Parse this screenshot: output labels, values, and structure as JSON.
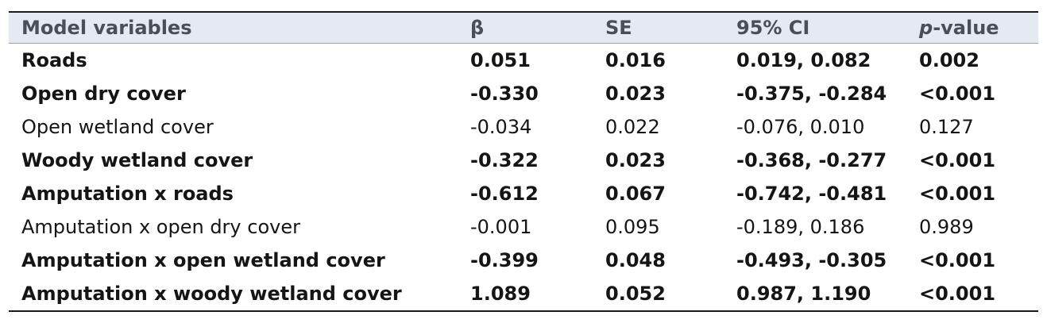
{
  "table": {
    "headers": {
      "variable": "Model variables",
      "beta": "β",
      "se": "SE",
      "ci": "95% CI",
      "p_prefix": "p",
      "p_suffix": "-value"
    },
    "rows": [
      {
        "variable": "Roads",
        "beta": "0.051",
        "se": "0.016",
        "ci": "0.019, 0.082",
        "p": "0.002",
        "bold": true
      },
      {
        "variable": "Open dry cover",
        "beta": "-0.330",
        "se": "0.023",
        "ci": "-0.375, -0.284",
        "p": "<0.001",
        "bold": true
      },
      {
        "variable": "Open wetland cover",
        "beta": "-0.034",
        "se": "0.022",
        "ci": "-0.076, 0.010",
        "p": "0.127",
        "bold": false
      },
      {
        "variable": "Woody wetland cover",
        "beta": "-0.322",
        "se": "0.023",
        "ci": "-0.368, -0.277",
        "p": "<0.001",
        "bold": true
      },
      {
        "variable": "Amputation x roads",
        "beta": "-0.612",
        "se": "0.067",
        "ci": "-0.742, -0.481",
        "p": "<0.001",
        "bold": true
      },
      {
        "variable": "Amputation x open dry cover",
        "beta": "-0.001",
        "se": "0.095",
        "ci": "-0.189, 0.186",
        "p": "0.989",
        "bold": false
      },
      {
        "variable": "Amputation x open wetland cover",
        "beta": "-0.399",
        "se": "0.048",
        "ci": "-0.493, -0.305",
        "p": "<0.001",
        "bold": true
      },
      {
        "variable": "Amputation x woody wetland cover",
        "beta": "1.089",
        "se": "0.052",
        "ci": "0.987, 1.190",
        "p": "<0.001",
        "bold": true
      }
    ],
    "colors": {
      "header_bg": "#e5eaf1",
      "header_text": "#4a4f57",
      "rule": "#1a1a1a"
    }
  }
}
